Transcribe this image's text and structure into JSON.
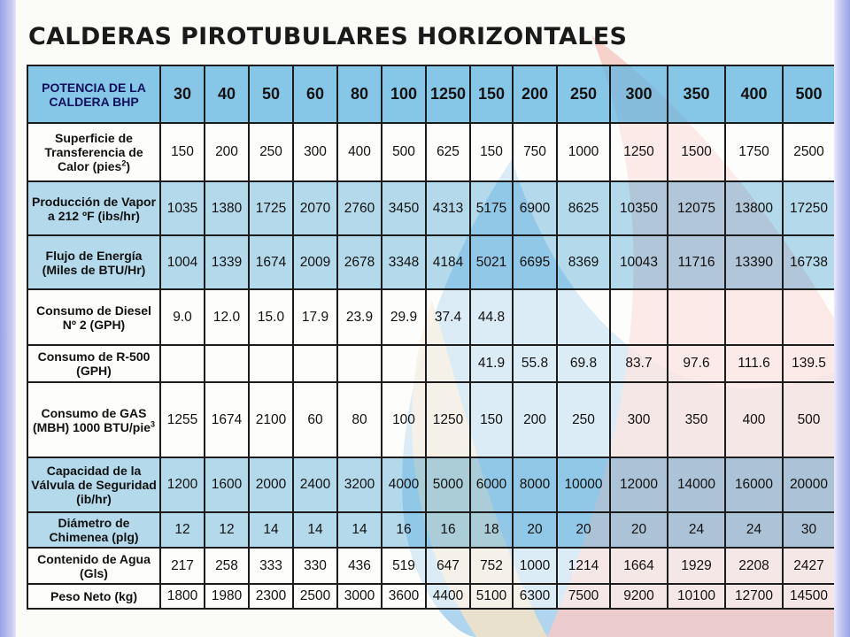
{
  "title": "CALDERAS PIROTUBULARES HORIZONTALES",
  "header": {
    "label": "POTENCIA DE LA CALDERA BHP",
    "values": [
      "30",
      "40",
      "50",
      "60",
      "80",
      "100",
      "1250",
      "150",
      "200",
      "250",
      "300",
      "350",
      "400",
      "500"
    ]
  },
  "rows": [
    {
      "label": "Superficie de Transferencia de Calor (pies",
      "label_sup": "2",
      "label_tail": ")",
      "values": [
        "150",
        "200",
        "250",
        "300",
        "400",
        "500",
        "625",
        "150",
        "750",
        "1000",
        "1250",
        "1500",
        "1750",
        "2500"
      ]
    },
    {
      "label": "Producción de Vapor a 212 ºF (ibs/hr)",
      "values": [
        "1035",
        "1380",
        "1725",
        "2070",
        "2760",
        "3450",
        "4313",
        "5175",
        "6900",
        "8625",
        "10350",
        "12075",
        "13800",
        "17250"
      ]
    },
    {
      "label": "Flujo de Energía (Miles de BTU/Hr)",
      "values": [
        "1004",
        "1339",
        "1674",
        "2009",
        "2678",
        "3348",
        "4184",
        "5021",
        "6695",
        "8369",
        "10043",
        "11716",
        "13390",
        "16738"
      ]
    },
    {
      "label": "Consumo de Diesel Nº 2 (GPH)",
      "values": [
        "9.0",
        "12.0",
        "15.0",
        "17.9",
        "23.9",
        "29.9",
        "37.4",
        "44.8",
        "",
        "",
        "",
        "",
        "",
        ""
      ]
    },
    {
      "label": "Consumo de R-500 (GPH)",
      "values": [
        "",
        "",
        "",
        "",
        "",
        "",
        "",
        "41.9",
        "55.8",
        "69.8",
        "83.7",
        "97.6",
        "111.6",
        "139.5"
      ]
    },
    {
      "label": "Consumo de GAS (MBH) 1000 BTU/pie",
      "label_sup": "3",
      "label_tail": "",
      "values": [
        "1255",
        "1674",
        "2100",
        "60",
        "80",
        "100",
        "1250",
        "150",
        "200",
        "250",
        "300",
        "350",
        "400",
        "500"
      ]
    },
    {
      "label": "Capacidad de la Válvula de Seguridad (ib/hr)",
      "values": [
        "1200",
        "1600",
        "2000",
        "2400",
        "3200",
        "4000",
        "5000",
        "6000",
        "8000",
        "10000",
        "12000",
        "14000",
        "16000",
        "20000"
      ]
    },
    {
      "label": "Diámetro de Chimenea (plg)",
      "values": [
        "12",
        "12",
        "14",
        "14",
        "14",
        "16",
        "16",
        "18",
        "20",
        "20",
        "20",
        "24",
        "24",
        "30"
      ]
    },
    {
      "label": "Contenido de Agua (Gls)",
      "values": [
        "217",
        "258",
        "333",
        "330",
        "436",
        "519",
        "647",
        "752",
        "1000",
        "1214",
        "1664",
        "1929",
        "2208",
        "2427"
      ]
    },
    {
      "label": "Peso Neto (kg)",
      "values": [
        "1800",
        "1980",
        "2300",
        "2500",
        "3000",
        "3600",
        "4400",
        "5100",
        "6300",
        "7500",
        "9200",
        "10100",
        "12700",
        "14500"
      ]
    }
  ],
  "colors": {
    "header_blue": "#5fb4e1",
    "row_blue": "#a9d6ee",
    "decor_blue": "#8fc6ea",
    "decor_pink": "#f6c9c4",
    "decor_sand": "#f0e2c9"
  }
}
